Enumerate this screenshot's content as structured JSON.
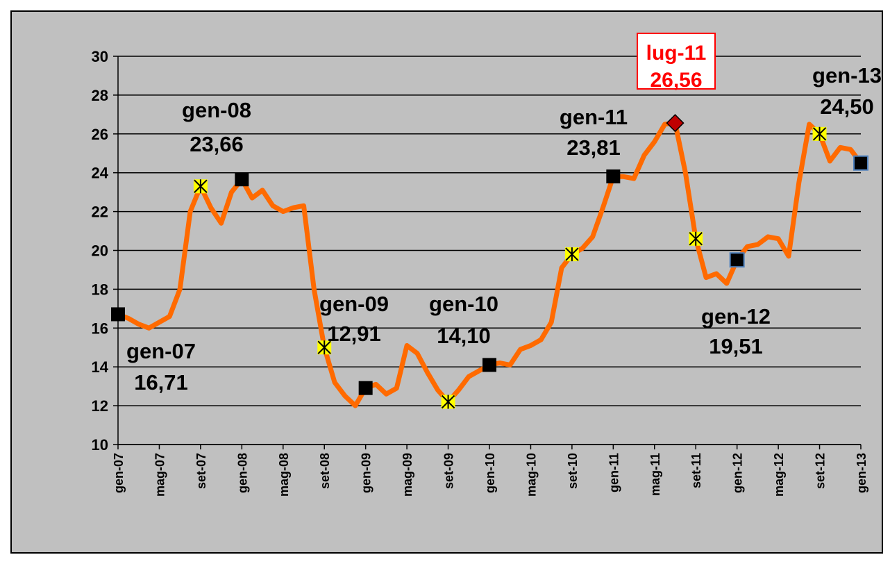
{
  "chart_data": {
    "type": "line",
    "categories": [
      "gen-07",
      null,
      null,
      null,
      "mag-07",
      null,
      null,
      null,
      "set-07",
      null,
      null,
      null,
      "gen-08",
      null,
      null,
      null,
      "mag-08",
      null,
      null,
      null,
      "set-08",
      null,
      null,
      null,
      "gen-09",
      null,
      null,
      null,
      "mag-09",
      null,
      null,
      null,
      "set-09",
      null,
      null,
      null,
      "gen-10",
      null,
      null,
      null,
      "mag-10",
      null,
      null,
      null,
      "set-10",
      null,
      null,
      null,
      "gen-11",
      null,
      null,
      null,
      "mag-11",
      null,
      null,
      null,
      "set-11",
      null,
      null,
      null,
      "gen-12",
      null,
      null,
      null,
      "mag-12",
      null,
      null,
      null,
      "set-12",
      null,
      null,
      null,
      "gen-13"
    ],
    "values": [
      16.71,
      16.5,
      16.2,
      16.0,
      16.3,
      16.6,
      18.0,
      22.0,
      23.3,
      22.2,
      21.4,
      23.0,
      23.66,
      22.7,
      23.1,
      22.3,
      22.0,
      22.2,
      22.3,
      18.0,
      15.0,
      13.2,
      12.5,
      12.0,
      12.91,
      13.1,
      12.6,
      12.9,
      15.1,
      14.7,
      13.7,
      12.8,
      12.2,
      12.8,
      13.5,
      13.8,
      14.1,
      14.2,
      14.1,
      14.9,
      15.1,
      15.4,
      16.3,
      19.1,
      19.8,
      20.1,
      20.7,
      22.2,
      23.81,
      23.8,
      23.7,
      24.9,
      25.6,
      26.5,
      26.56,
      24.0,
      20.6,
      18.6,
      18.8,
      18.3,
      19.51,
      20.2,
      20.3,
      20.7,
      20.6,
      19.7,
      23.5,
      26.5,
      26.0,
      24.6,
      25.3,
      25.2,
      24.5
    ],
    "point_labels": [
      "gen-07",
      null,
      null,
      null,
      null,
      null,
      null,
      null,
      null,
      null,
      null,
      null,
      "gen-08",
      null,
      null,
      null,
      null,
      null,
      null,
      null,
      null,
      null,
      null,
      null,
      "gen-09",
      null,
      null,
      null,
      null,
      null,
      null,
      null,
      null,
      null,
      null,
      null,
      "gen-10",
      null,
      null,
      null,
      null,
      null,
      null,
      null,
      null,
      null,
      null,
      null,
      "gen-11",
      null,
      null,
      null,
      null,
      null,
      "lug-11",
      null,
      null,
      null,
      null,
      null,
      "gen-12",
      null,
      null,
      null,
      null,
      null,
      null,
      null,
      null,
      null,
      null,
      null,
      "gen-13"
    ],
    "value_labels": [
      "16,71",
      null,
      null,
      null,
      null,
      null,
      null,
      null,
      null,
      null,
      null,
      null,
      "23,66",
      null,
      null,
      null,
      null,
      null,
      null,
      null,
      null,
      null,
      null,
      null,
      "12,91",
      null,
      null,
      null,
      null,
      null,
      null,
      null,
      null,
      null,
      null,
      null,
      "14,10",
      null,
      null,
      null,
      null,
      null,
      null,
      null,
      null,
      null,
      null,
      null,
      "23,81",
      null,
      null,
      null,
      null,
      null,
      "26,56",
      null,
      null,
      null,
      null,
      null,
      "19,51",
      null,
      null,
      null,
      null,
      null,
      null,
      null,
      null,
      null,
      null,
      null,
      "24,50"
    ],
    "color": "#ff6a00",
    "markers": {
      "square": [
        0,
        12,
        24,
        36,
        48
      ],
      "square_blue": [
        60,
        72
      ],
      "star": [
        8,
        20,
        32,
        44,
        56,
        68
      ],
      "diamond": [
        54
      ]
    },
    "ylim": [
      10,
      30
    ],
    "yticks": [
      10,
      12,
      14,
      16,
      18,
      20,
      22,
      24,
      26,
      28,
      30
    ],
    "grid": true
  }
}
